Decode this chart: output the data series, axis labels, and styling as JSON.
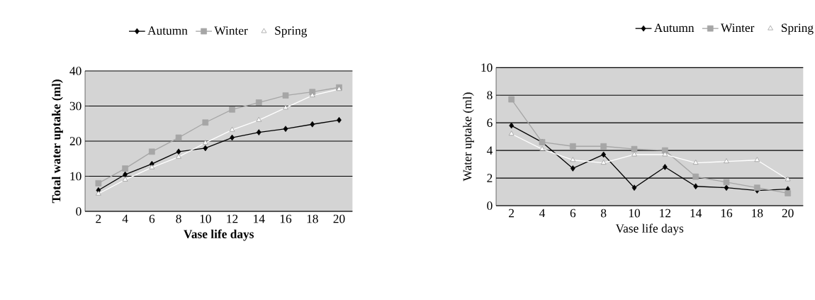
{
  "chart_data": [
    {
      "type": "line",
      "xlabel": "Vase life days",
      "ylabel": "Total water uptake (ml)",
      "categories": [
        "2",
        "4",
        "6",
        "8",
        "10",
        "12",
        "14",
        "16",
        "18",
        "20"
      ],
      "ylim": [
        0,
        40
      ],
      "yticks": [
        0,
        10,
        20,
        30,
        40
      ],
      "grid": "y",
      "legend": "top",
      "series": [
        {
          "name": "Autumn",
          "color": "#000000",
          "marker": "diamond",
          "values": [
            6,
            10.5,
            13.5,
            17,
            18,
            21,
            22.5,
            23.5,
            24.8,
            26
          ]
        },
        {
          "name": "Winter",
          "color": "#a6a6a6",
          "marker": "square",
          "values": [
            8,
            12.2,
            17,
            21,
            25.3,
            29,
            31,
            33,
            34,
            35.3
          ]
        },
        {
          "name": "Spring",
          "color": "#ffffff",
          "marker": "triangle",
          "values": [
            5,
            9,
            12.5,
            15.5,
            19.5,
            23.2,
            26,
            29.5,
            33,
            34.8
          ]
        }
      ]
    },
    {
      "type": "line",
      "xlabel": "Vase life days",
      "ylabel": "Water uptake (ml)",
      "categories": [
        "2",
        "4",
        "6",
        "8",
        "10",
        "12",
        "14",
        "16",
        "18",
        "20"
      ],
      "ylim": [
        0,
        10
      ],
      "yticks": [
        0,
        2,
        4,
        6,
        8,
        10
      ],
      "grid": "y",
      "legend": "top right",
      "series": [
        {
          "name": "Autumn",
          "color": "#000000",
          "marker": "diamond",
          "values": [
            5.8,
            4.6,
            2.7,
            3.7,
            1.3,
            2.8,
            1.4,
            1.3,
            1.1,
            1.2
          ]
        },
        {
          "name": "Winter",
          "color": "#a6a6a6",
          "marker": "square",
          "values": [
            7.7,
            4.6,
            4.3,
            4.3,
            4.1,
            4.0,
            2.1,
            1.7,
            1.3,
            0.9
          ]
        },
        {
          "name": "Spring",
          "color": "#ffffff",
          "marker": "triangle",
          "values": [
            5.2,
            4.1,
            3.3,
            3.1,
            3.7,
            3.7,
            3.1,
            3.2,
            3.3,
            1.9
          ]
        }
      ]
    }
  ]
}
